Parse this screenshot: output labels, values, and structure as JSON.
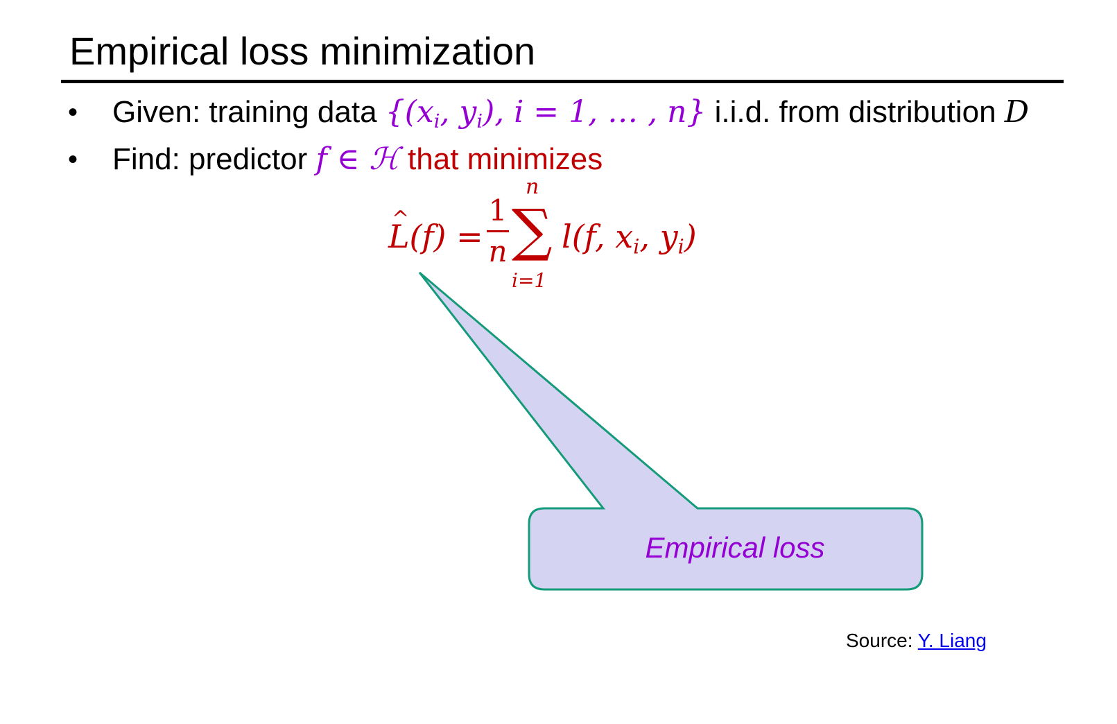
{
  "slide": {
    "title": "Empirical loss minimization"
  },
  "bullets": [
    {
      "symbol": "•",
      "lead": "Given: training data ",
      "math_set": "{(x",
      "math_i1": "i",
      "math_comma": ", y",
      "math_i2": "i",
      "math_rest": "), i = 1, … , n}",
      "trail": " i.i.d. from distribution ",
      "math_dist": "D"
    },
    {
      "symbol": "•",
      "lead": "Find: predictor ",
      "math_f": "f",
      "math_in": " ∈ ",
      "math_H": "ℋ",
      "trail": " that minimizes"
    }
  ],
  "formula": {
    "L": "L",
    "hat": "^",
    "lhs_rest": "(f) ",
    "eq": "=",
    "frac_num": "1",
    "frac_den": "n",
    "sigma": "∑",
    "upper": "n",
    "lower": "i=1",
    "rhs_a": "l(f, x",
    "rhs_i1": "i",
    "rhs_b": ", y",
    "rhs_i2": "i",
    "rhs_c": ")"
  },
  "callout": {
    "label": "Empirical loss",
    "fill": "#d4d4f2",
    "stroke": "#159a7a"
  },
  "source": {
    "prefix": "Source: ",
    "link_text": "Y. Liang"
  },
  "colors": {
    "math_purple": "#9400d3",
    "emphasis_red": "#c00000",
    "link_blue": "#0000ee"
  }
}
